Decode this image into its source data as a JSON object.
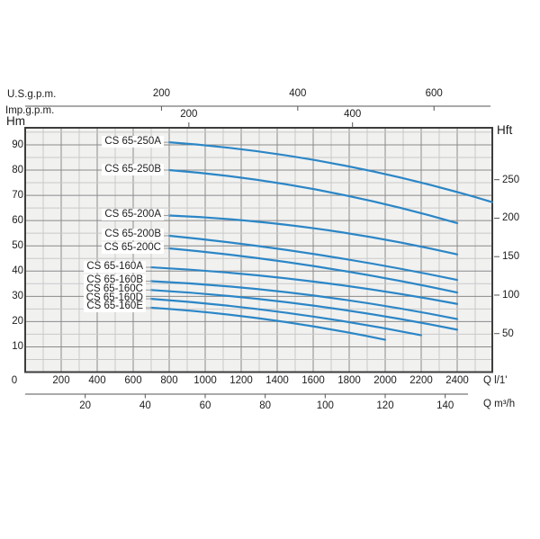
{
  "colors": {
    "curve": "#2b86c6",
    "grid_minor": "#c9c9c9",
    "grid_major": "#8a8a8a",
    "frame": "#3d3d3d",
    "axis": "#555555",
    "leader": "#999999",
    "plot_bg": "#f1f1f0",
    "text": "#1c1c1c"
  },
  "chart_data": {
    "type": "line",
    "title": "",
    "x_axis_l_per_min": {
      "name": "Q l/1'",
      "ticks": [
        0,
        200,
        400,
        600,
        800,
        1000,
        1200,
        1400,
        1600,
        1800,
        2000,
        2200,
        2400
      ],
      "range": [
        0,
        2600
      ],
      "position": "bottom"
    },
    "x_axis_m3h": {
      "name": "Q m³/h",
      "ticks": [
        20,
        40,
        60,
        80,
        100,
        120,
        140
      ],
      "position": "bottom-secondary"
    },
    "x_axis_usgpm": {
      "name": "U.S.g.p.m.",
      "ticks": [
        200,
        400,
        600
      ],
      "position": "top"
    },
    "x_axis_impgpm": {
      "name": "Imp.g.p.m.",
      "ticks": [
        200,
        400
      ],
      "position": "top-secondary"
    },
    "y_axis_m": {
      "name": "Hm",
      "ticks": [
        90,
        80,
        70,
        60,
        50,
        40,
        30,
        20,
        10
      ],
      "range": [
        0,
        96.8
      ],
      "position": "left"
    },
    "y_axis_ft": {
      "name": "Hft",
      "ticks": [
        250,
        200,
        150,
        100,
        50
      ],
      "position": "right"
    },
    "grid": {
      "x_minor_step_l_per_min": 100,
      "x_major_step_l_per_min": 200,
      "y_minor_step_m": 5,
      "y_major_step_m": 10
    },
    "legend_position": "labels-at-curve-start",
    "series": [
      {
        "name": "CS 65-250A",
        "points_q_lmin_head_m": [
          [
            800,
            91.0
          ],
          [
            1700,
            82.8
          ],
          [
            2595,
            67.3
          ]
        ]
      },
      {
        "name": "CS 65-250B",
        "points_q_lmin_head_m": [
          [
            800,
            80.0
          ],
          [
            1600,
            72.5
          ],
          [
            2400,
            59.0
          ]
        ]
      },
      {
        "name": "CS 65-200A",
        "points_q_lmin_head_m": [
          [
            800,
            62.0
          ],
          [
            1600,
            57.0
          ],
          [
            2400,
            46.6
          ]
        ]
      },
      {
        "name": "CS 65-200B",
        "points_q_lmin_head_m": [
          [
            800,
            54.0
          ],
          [
            1600,
            46.8
          ],
          [
            2400,
            36.5
          ]
        ]
      },
      {
        "name": "CS 65-200C",
        "points_q_lmin_head_m": [
          [
            800,
            49.0
          ],
          [
            1600,
            42.0
          ],
          [
            2400,
            31.5
          ]
        ]
      },
      {
        "name": "CS 65-160A",
        "points_q_lmin_head_m": [
          [
            700,
            41.5
          ],
          [
            1550,
            36.3
          ],
          [
            2400,
            27.0
          ]
        ]
      },
      {
        "name": "CS 65-160B",
        "points_q_lmin_head_m": [
          [
            700,
            36.0
          ],
          [
            1550,
            30.8
          ],
          [
            2400,
            21.0
          ]
        ]
      },
      {
        "name": "CS 65-160C",
        "points_q_lmin_head_m": [
          [
            700,
            32.5
          ],
          [
            1550,
            26.8
          ],
          [
            2400,
            16.8
          ]
        ]
      },
      {
        "name": "CS 65-160D",
        "points_q_lmin_head_m": [
          [
            700,
            29.0
          ],
          [
            1450,
            23.5
          ],
          [
            2200,
            14.6
          ]
        ]
      },
      {
        "name": "CS 65-160E",
        "points_q_lmin_head_m": [
          [
            700,
            25.5
          ],
          [
            1350,
            20.8
          ],
          [
            2000,
            12.8
          ]
        ]
      }
    ]
  }
}
